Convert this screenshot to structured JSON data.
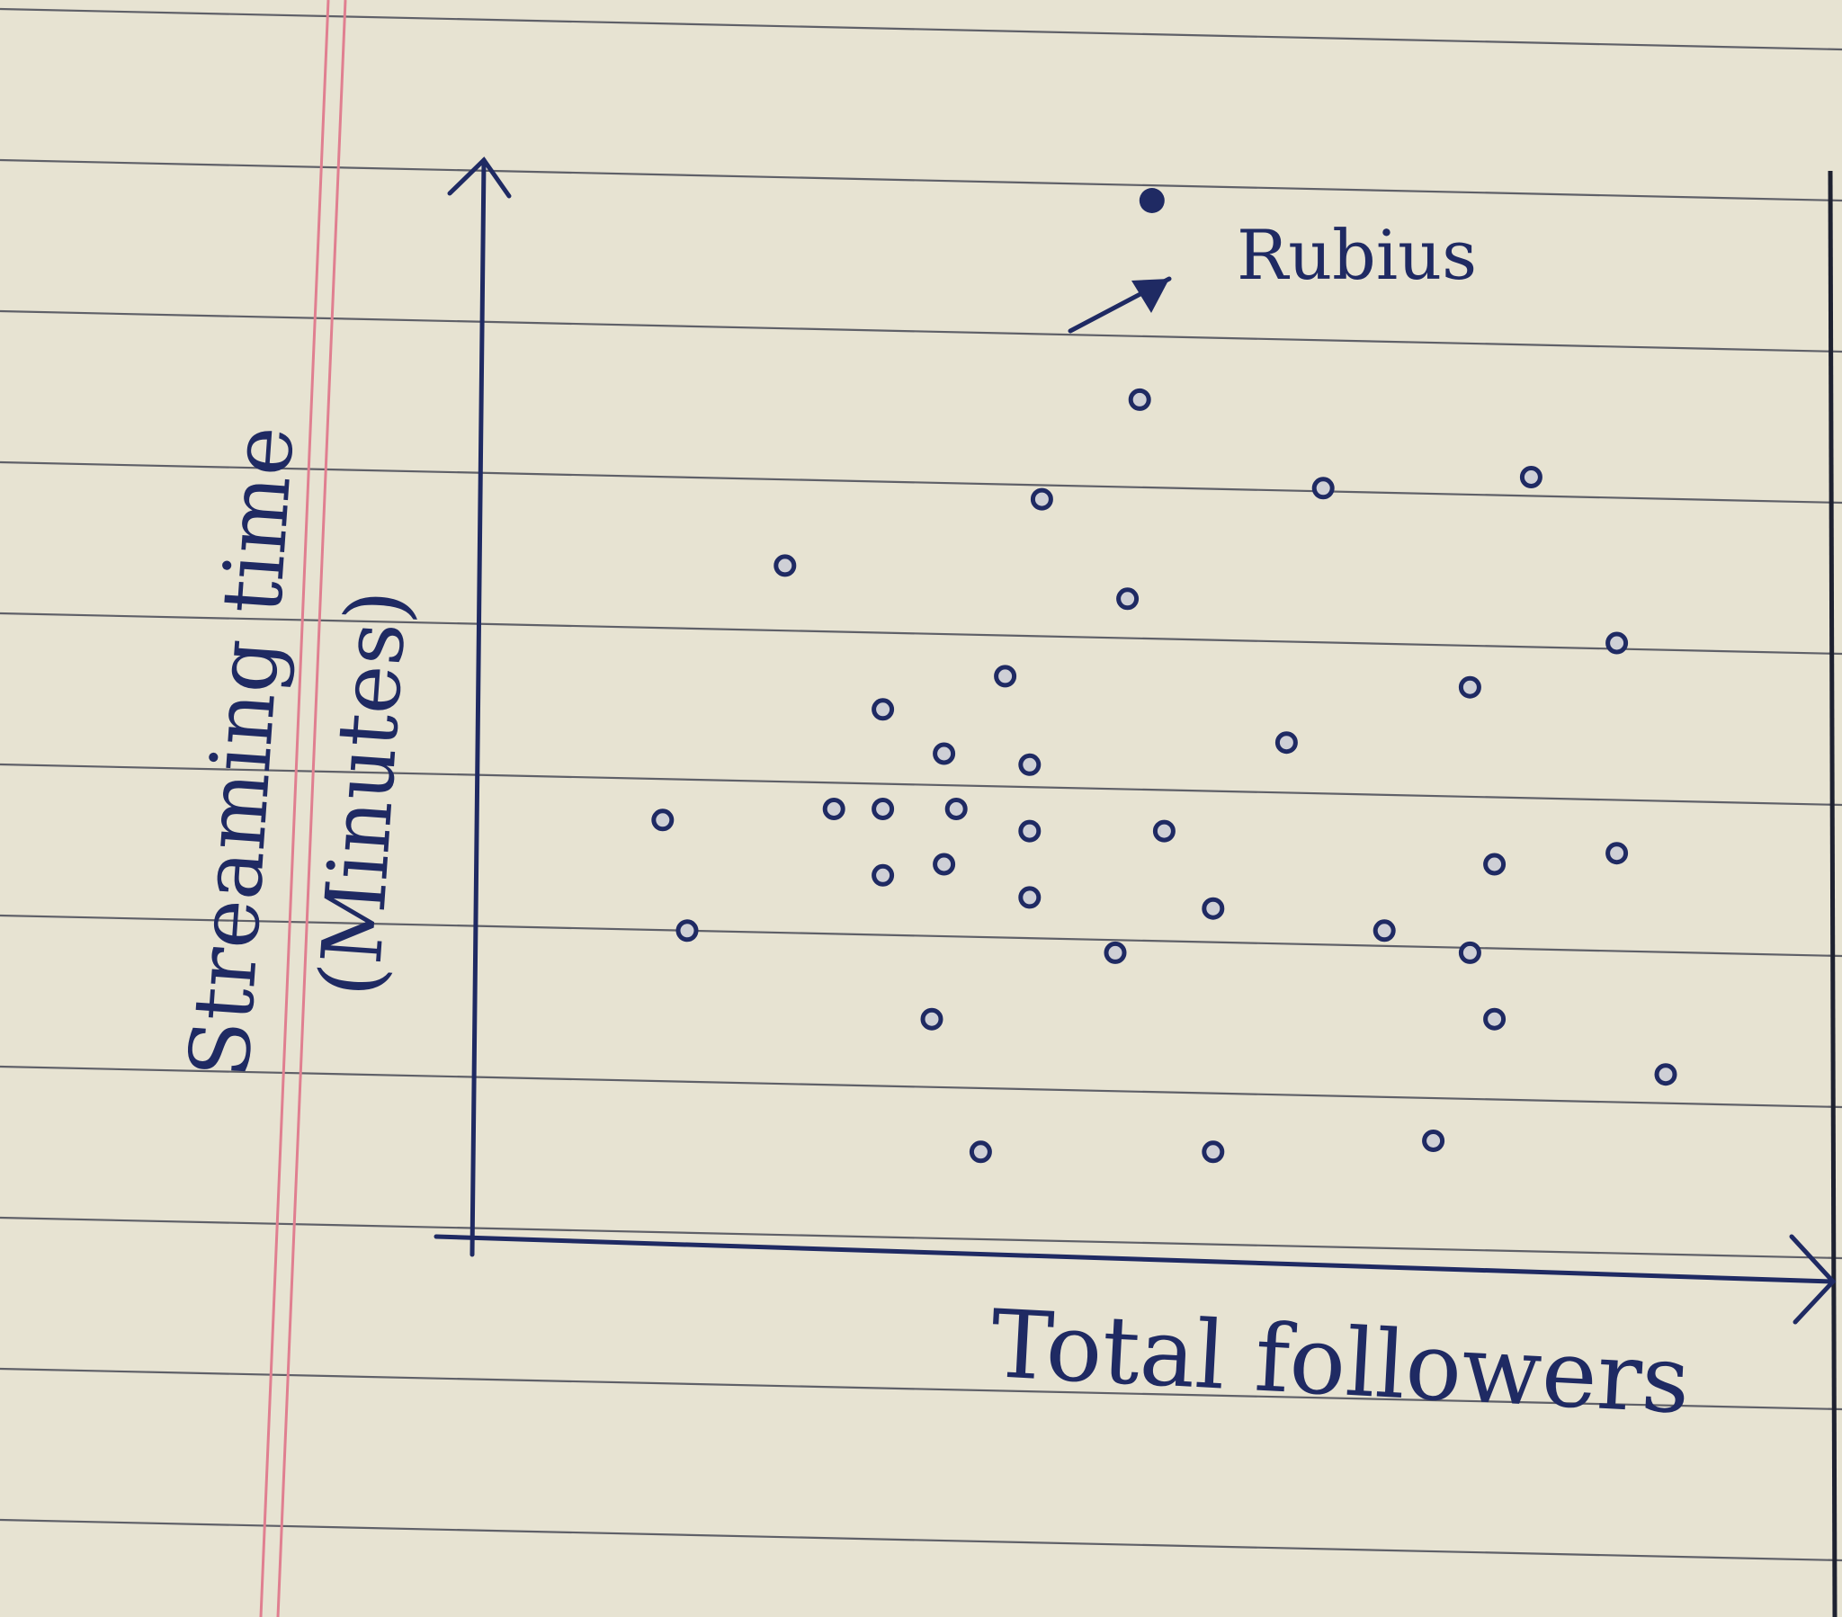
{
  "chart_data": {
    "type": "scatter",
    "xlabel": "Total followers",
    "ylabel_line1": "Streaming time",
    "ylabel_line2": "(Minutes)",
    "annotation": "Rubius",
    "x_range": [
      0,
      100
    ],
    "y_range": [
      0,
      100
    ],
    "grid": false,
    "points": [
      {
        "x": 13,
        "y": 34
      },
      {
        "x": 15,
        "y": 24
      },
      {
        "x": 23,
        "y": 57
      },
      {
        "x": 27,
        "y": 35
      },
      {
        "x": 31,
        "y": 44
      },
      {
        "x": 31,
        "y": 35
      },
      {
        "x": 31,
        "y": 29
      },
      {
        "x": 35,
        "y": 16
      },
      {
        "x": 36,
        "y": 40
      },
      {
        "x": 37,
        "y": 35
      },
      {
        "x": 36,
        "y": 30
      },
      {
        "x": 39,
        "y": 4
      },
      {
        "x": 41,
        "y": 47
      },
      {
        "x": 43,
        "y": 39
      },
      {
        "x": 43,
        "y": 33
      },
      {
        "x": 43,
        "y": 27
      },
      {
        "x": 44,
        "y": 63
      },
      {
        "x": 50,
        "y": 22
      },
      {
        "x": 51,
        "y": 54
      },
      {
        "x": 52,
        "y": 72
      },
      {
        "x": 54,
        "y": 33
      },
      {
        "x": 58,
        "y": 26
      },
      {
        "x": 58,
        "y": 4
      },
      {
        "x": 64,
        "y": 41
      },
      {
        "x": 67,
        "y": 64
      },
      {
        "x": 72,
        "y": 24
      },
      {
        "x": 76,
        "y": 5
      },
      {
        "x": 79,
        "y": 46
      },
      {
        "x": 79,
        "y": 22
      },
      {
        "x": 81,
        "y": 30
      },
      {
        "x": 81,
        "y": 16
      },
      {
        "x": 84,
        "y": 65
      },
      {
        "x": 91,
        "y": 50
      },
      {
        "x": 91,
        "y": 31
      },
      {
        "x": 95,
        "y": 11
      }
    ],
    "highlight": {
      "x": 53,
      "y": 90,
      "label": "Rubius"
    }
  }
}
